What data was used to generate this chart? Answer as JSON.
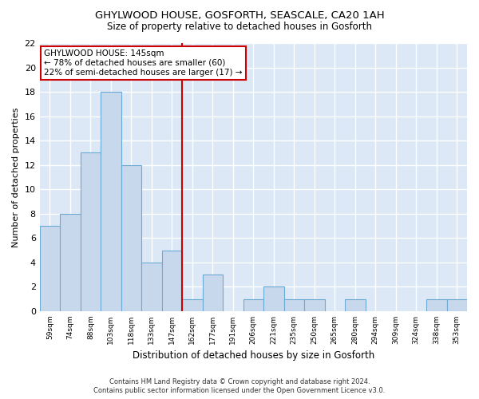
{
  "title1": "GHYLWOOD HOUSE, GOSFORTH, SEASCALE, CA20 1AH",
  "title2": "Size of property relative to detached houses in Gosforth",
  "xlabel": "Distribution of detached houses by size in Gosforth",
  "ylabel": "Number of detached properties",
  "bar_labels": [
    "59sqm",
    "74sqm",
    "88sqm",
    "103sqm",
    "118sqm",
    "133sqm",
    "147sqm",
    "162sqm",
    "177sqm",
    "191sqm",
    "206sqm",
    "221sqm",
    "235sqm",
    "250sqm",
    "265sqm",
    "280sqm",
    "294sqm",
    "309sqm",
    "324sqm",
    "338sqm",
    "353sqm"
  ],
  "bar_values": [
    7,
    8,
    13,
    18,
    12,
    4,
    5,
    1,
    3,
    0,
    1,
    2,
    1,
    1,
    0,
    1,
    0,
    0,
    0,
    1,
    1
  ],
  "bar_color": "#c8d8ec",
  "bar_edgecolor": "#6aaad4",
  "vline_x": 6.5,
  "vline_color": "#cc0000",
  "ylim": [
    0,
    22
  ],
  "yticks": [
    0,
    2,
    4,
    6,
    8,
    10,
    12,
    14,
    16,
    18,
    20,
    22
  ],
  "annotation_title": "GHYLWOOD HOUSE: 145sqm",
  "annotation_line1": "← 78% of detached houses are smaller (60)",
  "annotation_line2": "22% of semi-detached houses are larger (17) →",
  "annotation_box_color": "#ffffff",
  "annotation_box_edgecolor": "#cc0000",
  "footnote1": "Contains HM Land Registry data © Crown copyright and database right 2024.",
  "footnote2": "Contains public sector information licensed under the Open Government Licence v3.0.",
  "fig_bg_color": "#ffffff",
  "plot_bg_color": "#dce8f5",
  "grid_color": "#ffffff"
}
